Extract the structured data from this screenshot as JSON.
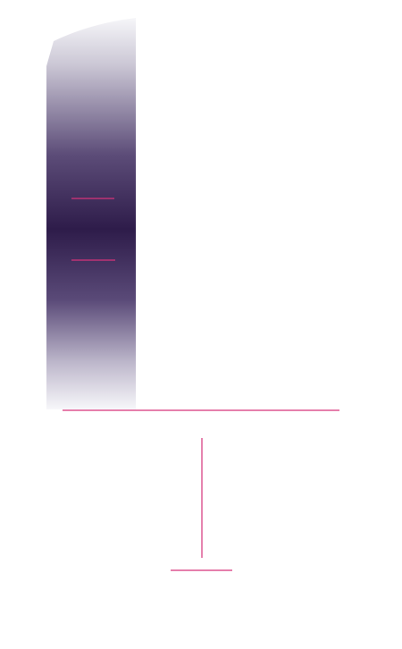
{
  "colors": {
    "background": "#ffffff",
    "panel_top": "#f4f4f7",
    "panel_mid": "#33204f",
    "panel_bottom": "#f4f4f7",
    "accent": "#d6337a"
  },
  "elements": {
    "panel": "gradient-panel",
    "markers": [
      "upper-marker-line",
      "lower-marker-line"
    ],
    "rules": [
      "horizontal-rule",
      "vertical-rule",
      "bottom-short-rule"
    ]
  }
}
